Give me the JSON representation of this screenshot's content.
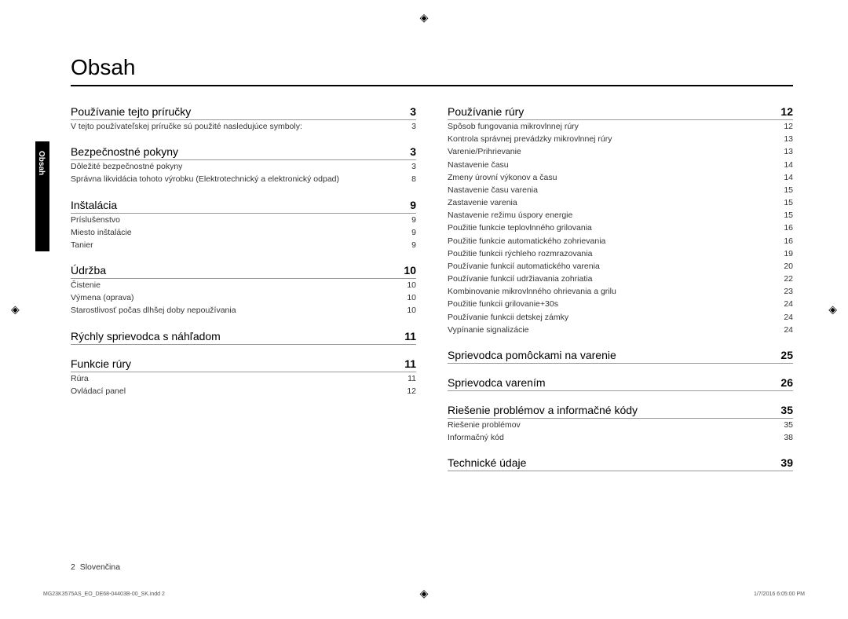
{
  "title": "Obsah",
  "side_tab": "Obsah",
  "registration_mark": "◈",
  "footer": {
    "page": "2",
    "lang": "Slovenčina"
  },
  "meta": {
    "left": "MG23K3575AS_EO_DE68-04403B-00_SK.indd   2",
    "right": "1/7/2016   6:05:00 PM"
  },
  "left_col": [
    {
      "type": "section",
      "title": "Používanie tejto príručky",
      "page": "3"
    },
    {
      "type": "sub",
      "title": "V tejto používateľskej príručke sú použité nasledujúce symboly:",
      "page": "3"
    },
    {
      "type": "section",
      "title": "Bezpečnostné pokyny",
      "page": "3"
    },
    {
      "type": "sub",
      "title": "Dôležité bezpečnostné pokyny",
      "page": "3"
    },
    {
      "type": "sub",
      "title": "Správna likvidácia tohoto výrobku (Elektrotechnický a elektronický odpad)",
      "page": "8"
    },
    {
      "type": "section",
      "title": "Inštalácia",
      "page": "9"
    },
    {
      "type": "sub",
      "title": "Príslušenstvo",
      "page": "9"
    },
    {
      "type": "sub",
      "title": "Miesto inštalácie",
      "page": "9"
    },
    {
      "type": "sub",
      "title": "Tanier",
      "page": "9"
    },
    {
      "type": "section",
      "title": "Údržba",
      "page": "10"
    },
    {
      "type": "sub",
      "title": "Čistenie",
      "page": "10"
    },
    {
      "type": "sub",
      "title": "Výmena (oprava)",
      "page": "10"
    },
    {
      "type": "sub",
      "title": "Starostlivosť počas dlhšej doby nepoužívania",
      "page": "10"
    },
    {
      "type": "section",
      "title": "Rýchly sprievodca s náhľadom",
      "page": "11"
    },
    {
      "type": "section",
      "title": "Funkcie rúry",
      "page": "11"
    },
    {
      "type": "sub",
      "title": "Rúra",
      "page": "11"
    },
    {
      "type": "sub",
      "title": "Ovládací panel",
      "page": "12"
    }
  ],
  "right_col": [
    {
      "type": "section",
      "title": "Používanie rúry",
      "page": "12"
    },
    {
      "type": "sub",
      "title": "Spôsob fungovania mikrovlnnej rúry",
      "page": "12"
    },
    {
      "type": "sub",
      "title": "Kontrola správnej prevádzky mikrovlnnej rúry",
      "page": "13"
    },
    {
      "type": "sub",
      "title": "Varenie/Prihrievanie",
      "page": "13"
    },
    {
      "type": "sub",
      "title": "Nastavenie času",
      "page": "14"
    },
    {
      "type": "sub",
      "title": "Zmeny úrovní výkonov a času",
      "page": "14"
    },
    {
      "type": "sub",
      "title": "Nastavenie času varenia",
      "page": "15"
    },
    {
      "type": "sub",
      "title": "Zastavenie varenia",
      "page": "15"
    },
    {
      "type": "sub",
      "title": "Nastavenie režimu úspory energie",
      "page": "15"
    },
    {
      "type": "sub",
      "title": "Použitie funkcie teplovlnného grilovania",
      "page": "16"
    },
    {
      "type": "sub",
      "title": "Použitie funkcie automatického zohrievania",
      "page": "16"
    },
    {
      "type": "sub",
      "title": "Použitie funkcii rýchleho rozmrazovania",
      "page": "19"
    },
    {
      "type": "sub",
      "title": "Používanie funkcií automatického varenia",
      "page": "20"
    },
    {
      "type": "sub",
      "title": "Používanie funkcií udržiavania zohriatia",
      "page": "22"
    },
    {
      "type": "sub",
      "title": "Kombinovanie mikrovlnného ohrievania a grilu",
      "page": "23"
    },
    {
      "type": "sub",
      "title": "Použitie funkcii grilovanie+30s",
      "page": "24"
    },
    {
      "type": "sub",
      "title": "Používanie funkcii detskej zámky",
      "page": "24"
    },
    {
      "type": "sub",
      "title": "Vypínanie signalizácie",
      "page": "24"
    },
    {
      "type": "section",
      "title": "Sprievodca pomôckami na varenie",
      "page": "25"
    },
    {
      "type": "section",
      "title": "Sprievodca varením",
      "page": "26"
    },
    {
      "type": "section",
      "title": "Riešenie problémov a informačné kódy",
      "page": "35"
    },
    {
      "type": "sub",
      "title": "Riešenie problémov",
      "page": "35"
    },
    {
      "type": "sub",
      "title": "Informačný kód",
      "page": "38"
    },
    {
      "type": "section",
      "title": "Technické údaje",
      "page": "39"
    }
  ]
}
